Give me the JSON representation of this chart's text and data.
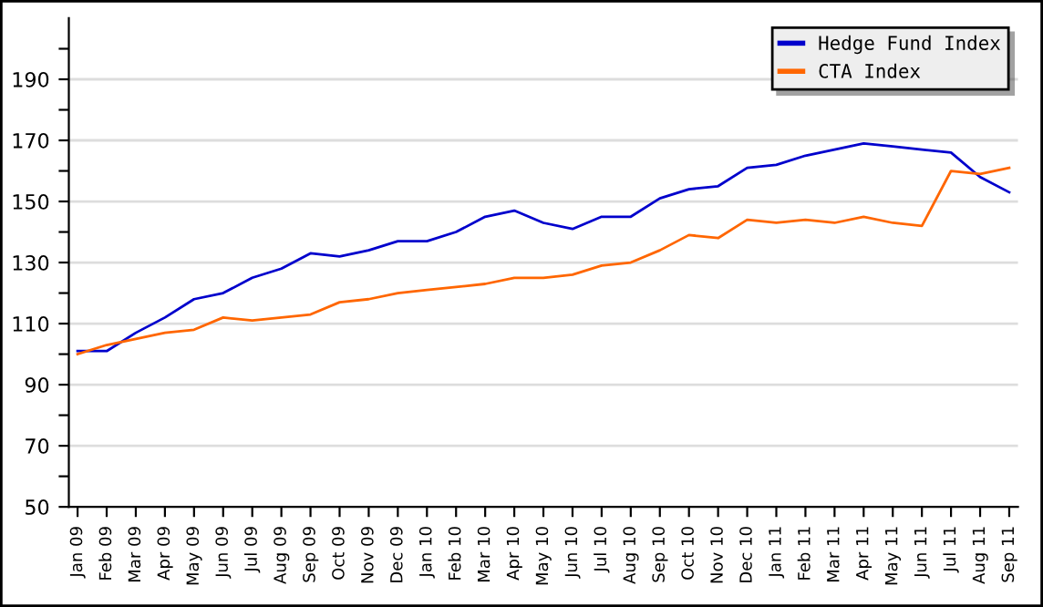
{
  "chart_data": {
    "type": "line",
    "categories": [
      "Jan 09",
      "Feb 09",
      "Mar 09",
      "Apr 09",
      "May 09",
      "Jun 09",
      "Jul 09",
      "Aug 09",
      "Sep 09",
      "Oct 09",
      "Nov 09",
      "Dec 09",
      "Jan 10",
      "Feb 10",
      "Mar 10",
      "Apr 10",
      "May 10",
      "Jun 10",
      "Jul 10",
      "Aug 10",
      "Sep 10",
      "Oct 10",
      "Nov 10",
      "Dec 10",
      "Jan 11",
      "Feb 11",
      "Mar 11",
      "Apr 11",
      "May 11",
      "Jun 11",
      "Jul 11",
      "Aug 11",
      "Sep 11"
    ],
    "series": [
      {
        "name": "Hedge Fund Index",
        "color": "#0000cc",
        "values": [
          101,
          101,
          107,
          112,
          118,
          120,
          125,
          128,
          133,
          132,
          134,
          137,
          137,
          140,
          145,
          147,
          143,
          141,
          145,
          145,
          151,
          154,
          155,
          161,
          162,
          165,
          167,
          169,
          168,
          167,
          166,
          158,
          153
        ]
      },
      {
        "name": "CTA Index",
        "color": "#ff6600",
        "values": [
          100,
          103,
          105,
          107,
          108,
          112,
          111,
          112,
          113,
          117,
          118,
          120,
          121,
          122,
          123,
          125,
          125,
          126,
          129,
          130,
          134,
          139,
          138,
          144,
          143,
          144,
          143,
          145,
          143,
          142,
          160,
          159,
          161
        ]
      }
    ],
    "ylim": [
      50,
      210
    ],
    "yticks": [
      50,
      {
        "value": 60,
        "label": null
      },
      70,
      {
        "value": 80,
        "label": null
      },
      90,
      {
        "value": 100,
        "label": null
      },
      110,
      {
        "value": 120,
        "label": null
      },
      130,
      {
        "value": 140,
        "label": null
      },
      150,
      {
        "value": 160,
        "label": null
      },
      170,
      {
        "value": 180,
        "label": null
      },
      190,
      {
        "value": 200,
        "label": null
      }
    ],
    "grid": "y",
    "legend": "top right",
    "line_style": "solid",
    "marker": "none"
  }
}
